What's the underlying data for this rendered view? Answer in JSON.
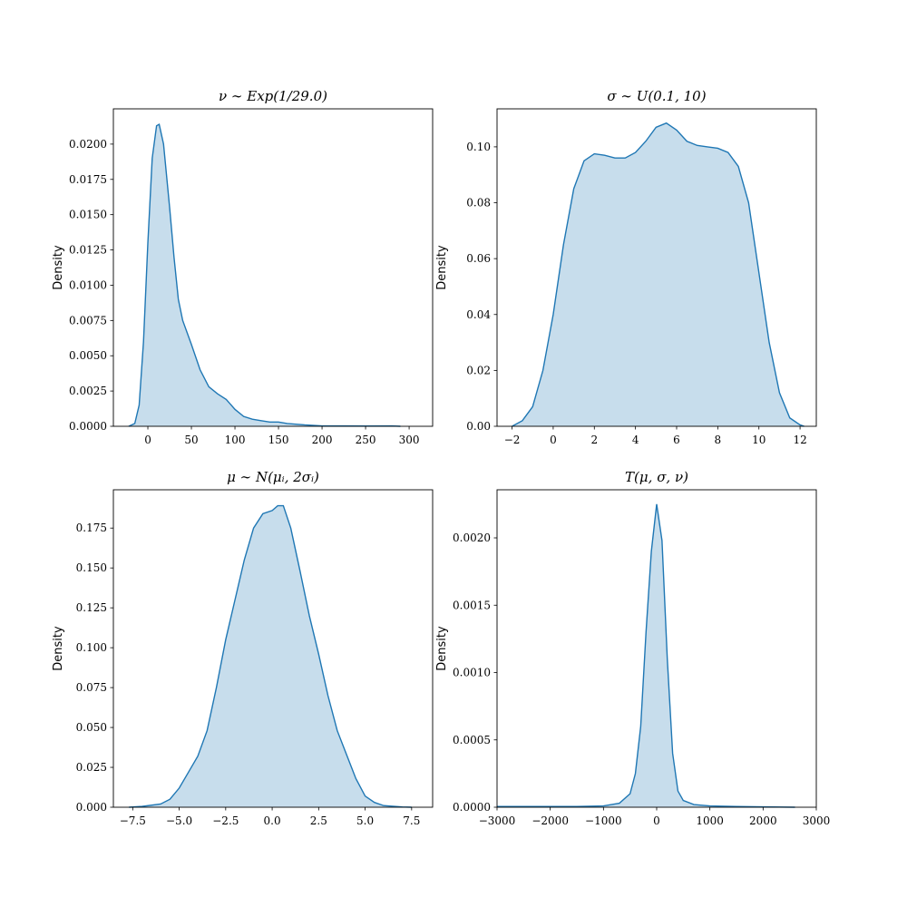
{
  "chart_data": [
    {
      "type": "area",
      "title": "ν ∼ Exp(1/29.0)",
      "ylabel": "Density",
      "color": "#1f77b4",
      "x": [
        -22,
        -15,
        -10,
        -5,
        0,
        5,
        10,
        13,
        18,
        25,
        30,
        35,
        40,
        50,
        60,
        70,
        80,
        90,
        100,
        110,
        120,
        130,
        140,
        150,
        160,
        180,
        200,
        250,
        280,
        290
      ],
      "values": [
        0,
        0.0002,
        0.0015,
        0.006,
        0.013,
        0.019,
        0.0213,
        0.0214,
        0.02,
        0.0155,
        0.012,
        0.009,
        0.0075,
        0.0058,
        0.004,
        0.0028,
        0.0023,
        0.0019,
        0.0012,
        0.0007,
        0.0005,
        0.0004,
        0.0003,
        0.0003,
        0.0002,
        0.0001,
        3e-05,
        2e-05,
        3e-05,
        0
      ],
      "xlim": [
        -39.6,
        327
      ],
      "ylim": [
        0,
        0.0225
      ],
      "xticks": [
        0,
        50,
        100,
        150,
        200,
        250,
        300
      ],
      "yticks": [
        {
          "value": 0,
          "label": "0.0000"
        },
        {
          "value": 0.0025,
          "label": "0.0025"
        },
        {
          "value": 0.005,
          "label": "0.0050"
        },
        {
          "value": 0.0075,
          "label": "0.0075"
        },
        {
          "value": 0.01,
          "label": "0.0100"
        },
        {
          "value": 0.0125,
          "label": "0.0125"
        },
        {
          "value": 0.015,
          "label": "0.0150"
        },
        {
          "value": 0.0175,
          "label": "0.0175"
        },
        {
          "value": 0.02,
          "label": "0.0200"
        }
      ]
    },
    {
      "type": "area",
      "title": "σ ∼ U(0.1, 10)",
      "ylabel": "Density",
      "color": "#1f77b4",
      "x": [
        -2,
        -1.5,
        -1,
        -0.5,
        0,
        0.5,
        1,
        1.5,
        2,
        2.5,
        3,
        3.5,
        4,
        4.5,
        5,
        5.5,
        6,
        6.5,
        7,
        7.5,
        8,
        8.5,
        9,
        9.5,
        10,
        10.5,
        11,
        11.5,
        12,
        12.2
      ],
      "values": [
        0,
        0.002,
        0.007,
        0.02,
        0.04,
        0.065,
        0.085,
        0.095,
        0.0975,
        0.097,
        0.096,
        0.096,
        0.098,
        0.102,
        0.107,
        0.1085,
        0.106,
        0.102,
        0.1005,
        0.1,
        0.0995,
        0.098,
        0.093,
        0.08,
        0.055,
        0.03,
        0.012,
        0.003,
        0.0005,
        0
      ],
      "xlim": [
        -2.73,
        12.79
      ],
      "ylim": [
        0,
        0.1136
      ],
      "xticks": [
        {
          "value": -2,
          "label": "−2"
        },
        0,
        2,
        4,
        6,
        8,
        10,
        12
      ],
      "yticks": [
        {
          "value": 0,
          "label": "0.00"
        },
        0.02,
        0.04,
        0.06,
        0.08,
        {
          "value": 0.1,
          "label": "0.10"
        }
      ]
    },
    {
      "type": "area",
      "title": "μ ∼ N(μᵢ, 2σᵢ)",
      "ylabel": "Density",
      "color": "#1f77b4",
      "x": [
        -7.7,
        -7,
        -6,
        -5.5,
        -5,
        -4.5,
        -4,
        -3.5,
        -3,
        -2.5,
        -2,
        -1.5,
        -1,
        -0.5,
        0,
        0.3,
        0.6,
        1,
        1.5,
        2,
        2.5,
        3,
        3.5,
        4,
        4.5,
        5,
        5.5,
        6,
        7,
        7.5
      ],
      "values": [
        0,
        0.0005,
        0.002,
        0.005,
        0.012,
        0.022,
        0.032,
        0.048,
        0.075,
        0.105,
        0.13,
        0.155,
        0.175,
        0.184,
        0.186,
        0.189,
        0.189,
        0.175,
        0.148,
        0.12,
        0.096,
        0.07,
        0.048,
        0.033,
        0.018,
        0.007,
        0.003,
        0.001,
        0.0002,
        0
      ],
      "xlim": [
        -8.54,
        8.63
      ],
      "ylim": [
        0,
        0.199
      ],
      "xticks": [
        {
          "value": -7.5,
          "label": "−7.5"
        },
        {
          "value": -5,
          "label": "−5.0"
        },
        {
          "value": -2.5,
          "label": "−2.5"
        },
        {
          "value": 0,
          "label": "0.0"
        },
        2.5,
        {
          "value": 5,
          "label": "5.0"
        },
        7.5
      ],
      "yticks": [
        {
          "value": 0,
          "label": "0.000"
        },
        0.025,
        {
          "value": 0.05,
          "label": "0.050"
        },
        0.075,
        {
          "value": 0.1,
          "label": "0.100"
        },
        0.125,
        {
          "value": 0.15,
          "label": "0.150"
        },
        0.175
      ]
    },
    {
      "type": "area",
      "title": "T(μ, σ, ν)",
      "ylabel": "Density",
      "color": "#1f77b4",
      "x": [
        -3000,
        -1500,
        -1000,
        -700,
        -500,
        -400,
        -300,
        -200,
        -100,
        0,
        100,
        200,
        300,
        400,
        500,
        700,
        1000,
        1500,
        2000,
        2600
      ],
      "values": [
        5e-06,
        5e-06,
        1e-05,
        3e-05,
        0.0001,
        0.00025,
        0.0006,
        0.0013,
        0.0019,
        0.00225,
        0.00198,
        0.0011,
        0.0004,
        0.00012,
        5e-05,
        2e-05,
        1e-05,
        5e-06,
        3e-06,
        0
      ],
      "xlim": [
        -3000,
        3000
      ],
      "ylim": [
        0,
        0.002357
      ],
      "xticks": [
        {
          "value": -3000,
          "label": "−3000"
        },
        {
          "value": -2000,
          "label": "−2000"
        },
        {
          "value": -1000,
          "label": "−1000"
        },
        0,
        1000,
        2000,
        3000
      ],
      "yticks": [
        {
          "value": 0,
          "label": "0.0000"
        },
        0.0005,
        {
          "value": 0.001,
          "label": "0.0010"
        },
        0.0015,
        {
          "value": 0.002,
          "label": "0.0020"
        }
      ]
    }
  ]
}
